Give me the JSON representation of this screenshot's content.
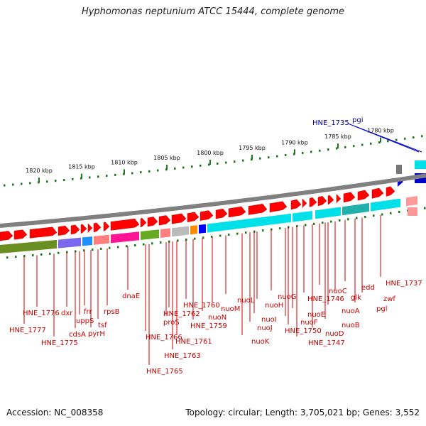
{
  "title": "Hyphomonas neptunium ATCC 15444, complete genome",
  "footer": {
    "accession": "Accession: NC_008358",
    "topology": "Topology: circular; Length: 3,705,021 bp; Genes: 3,552"
  },
  "ticks": [
    "1820 kbp",
    "1815 kbp",
    "1810 kbp",
    "1805 kbp",
    "1800 kbp",
    "1795 kbp",
    "1790 kbp",
    "1785 kbp",
    "1780 kbp"
  ],
  "highlight_labels": [
    "HNE_1735",
    "pgi"
  ],
  "gene_labels": [
    "HNE_1776",
    "HNE_1777",
    "HNE_1775",
    "dxr",
    "cdsA",
    "uppS",
    "frr",
    "pyrH",
    "tsf",
    "rpsB",
    "dnaE",
    "HNE_1766",
    "HNE_1765",
    "proS",
    "HNE_1762",
    "HNE_1763",
    "HNE_1761",
    "HNE_1760",
    "HNE_1759",
    "nuoN",
    "nuoM",
    "nuoL",
    "nuoK",
    "nuoJ",
    "nuoI",
    "nuoH",
    "nuoG",
    "nuoF",
    "HNE_1750",
    "nuoE",
    "HNE_1747",
    "HNE_1746",
    "nuoD",
    "nuoC",
    "nuoB",
    "nuoA",
    "glk",
    "edd",
    "pgl",
    "zwf",
    "HNE_1737"
  ],
  "colors": {
    "forward_gene": "#ff0000",
    "backbone": "#808080",
    "gc_dots": "#1a7a1a",
    "label_line": "#cc0000",
    "highlight": "#0000cc",
    "cog_cyan": "#00e0e8",
    "cog_pink": "#ff1493",
    "cog_olive": "#6b8e23",
    "cog_purple": "#7b68ee"
  }
}
